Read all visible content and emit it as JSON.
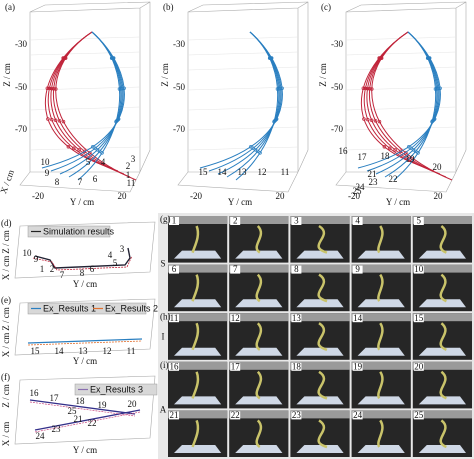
{
  "panels": [
    {
      "label": "(a)",
      "z_label": "Z / cm",
      "y_label": "Y / cm",
      "x_label": "X / cm",
      "z_ticks": [
        "-30",
        "-50",
        "-70"
      ],
      "y_ticks": [
        "-20",
        "20"
      ],
      "point_labels": [
        "10",
        "9",
        "8",
        "7",
        "6",
        "5",
        "4",
        "3",
        "2",
        "1",
        "11"
      ]
    },
    {
      "label": "(b)",
      "z_label": "Z / cm",
      "y_label": "Y / cm",
      "z_ticks": [
        "-30",
        "-50",
        "-70"
      ],
      "y_ticks": [
        "-20",
        "20"
      ],
      "point_labels": [
        "15",
        "14",
        "13",
        "12",
        "11"
      ]
    },
    {
      "label": "(c)",
      "z_label": "Z / cm",
      "y_label": "Y / cm",
      "z_ticks": [
        "-30",
        "-50",
        "-70"
      ],
      "y_ticks": [
        "-20",
        "20"
      ],
      "point_labels": [
        "16",
        "17",
        "18",
        "19",
        "20",
        "21",
        "22",
        "23",
        "24",
        "25"
      ]
    }
  ],
  "plan_views": [
    {
      "label": "(d)",
      "legend": [
        "Simulation results"
      ],
      "z_label": "Z / cm",
      "x_label": "X / cm",
      "y_label": "Y / cm",
      "point_labels": [
        "10",
        "9",
        "1",
        "2",
        "7",
        "8",
        "6",
        "5",
        "4",
        "3"
      ]
    },
    {
      "label": "(e)",
      "legend": [
        "Ex_Results 1",
        "Ex_Results 2"
      ],
      "z_label": "Z / cm",
      "x_label": "X / cm",
      "y_label": "Y / cm",
      "point_labels": [
        "15",
        "14",
        "13",
        "12",
        "11"
      ]
    },
    {
      "label": "(f)",
      "legend": [
        "Ex_Results 3"
      ],
      "z_label": "Z / cm",
      "x_label": "X / cm",
      "y_label": "Y / cm",
      "point_labels": [
        "16",
        "17",
        "18",
        "19",
        "20",
        "25",
        "21",
        "22",
        "23",
        "24"
      ]
    }
  ],
  "photo_groups": [
    {
      "label": "(g)",
      "letter": "S",
      "frames": [
        "1",
        "2",
        "3",
        "4",
        "5",
        "6",
        "7",
        "8",
        "9",
        "10"
      ]
    },
    {
      "label": "(h)",
      "letter": "I",
      "frames": [
        "11",
        "12",
        "13",
        "14",
        "15"
      ]
    },
    {
      "label": "(i)",
      "letter": "A",
      "frames": [
        "16",
        "17",
        "18",
        "19",
        "20",
        "21",
        "22",
        "23",
        "24",
        "25"
      ]
    }
  ]
}
